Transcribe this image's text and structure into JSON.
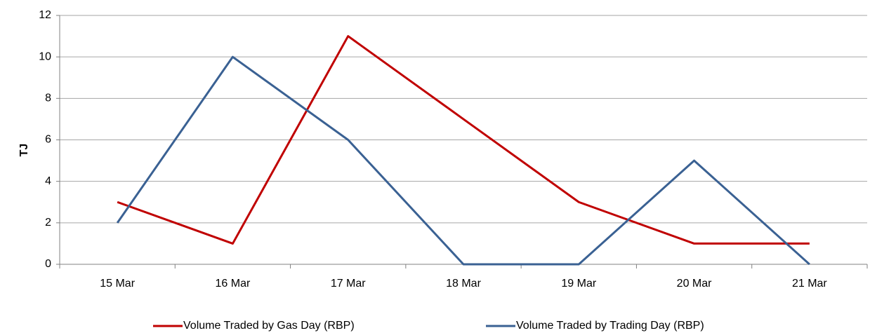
{
  "chart_data": {
    "type": "line",
    "y_label": "TJ",
    "categories": [
      "15 Mar",
      "16 Mar",
      "17 Mar",
      "18 Mar",
      "19 Mar",
      "20 Mar",
      "21 Mar"
    ],
    "series": [
      {
        "name": "Volume Traded by Gas Day (RBP)",
        "color": "#c00000",
        "values": [
          3,
          1,
          11,
          7,
          3,
          1,
          1
        ]
      },
      {
        "name": "Volume Traded by Trading Day (RBP)",
        "color": "#3a6193",
        "values": [
          2,
          10,
          6,
          0,
          0,
          5,
          0
        ]
      }
    ],
    "ylim": [
      0,
      12
    ],
    "yticks": [
      0,
      2,
      4,
      6,
      8,
      10,
      12
    ],
    "grid": true,
    "legend": "bottom"
  }
}
